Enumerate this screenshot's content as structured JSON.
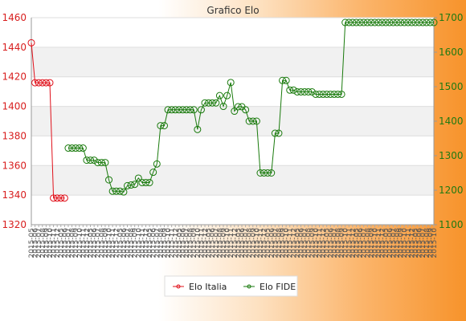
{
  "chart_data": {
    "type": "line",
    "title": "Grafico Elo",
    "grid": true,
    "legend_position": "bottom",
    "y_left": {
      "min": 1320,
      "max": 1460,
      "ticks": [
        1320,
        1340,
        1360,
        1380,
        1400,
        1420,
        1440,
        1460
      ],
      "color": "#d81e1e"
    },
    "y_right": {
      "min": 1100,
      "max": 1700,
      "ticks": [
        1100,
        1200,
        1300,
        1400,
        1500,
        1600,
        1700
      ],
      "color": "#1f7a12"
    },
    "x_tick_labels": [
      "2015-05",
      "2015-06",
      "2015-07",
      "2015-08",
      "2015-09",
      "2015-10",
      "2015-11",
      "2015-12"
    ],
    "series": [
      {
        "name": "Elo Italia",
        "axis": "left",
        "color": "#e0101a",
        "values": [
          1443,
          1416,
          1416,
          1416,
          1416,
          1416,
          1338,
          1338,
          1338,
          1338
        ]
      },
      {
        "name": "Elo FIDE",
        "axis": "right",
        "color": "#197a0c",
        "values": [
          null,
          null,
          null,
          null,
          null,
          null,
          null,
          null,
          null,
          null,
          1322,
          1322,
          1322,
          1322,
          1322,
          1287,
          1287,
          1287,
          1280,
          1280,
          1280,
          1230,
          1197,
          1197,
          1197,
          1195,
          1213,
          1215,
          1217,
          1235,
          1222,
          1222,
          1222,
          1252,
          1276,
          1387,
          1387,
          1433,
          1433,
          1433,
          1433,
          1433,
          1433,
          1433,
          1433,
          1376,
          1433,
          1453,
          1453,
          1453,
          1453,
          1474,
          1443,
          1474,
          1512,
          1429,
          1442,
          1442,
          1433,
          1400,
          1400,
          1400,
          1250,
          1250,
          1250,
          1250,
          1365,
          1365,
          1518,
          1518,
          1490,
          1490,
          1485,
          1485,
          1485,
          1485,
          1485,
          1478,
          1478,
          1478,
          1478,
          1478,
          1478,
          1478,
          1478,
          1686,
          1686,
          1686,
          1686,
          1686,
          1686,
          1686,
          1686,
          1686,
          1686,
          1686,
          1686,
          1686,
          1686,
          1686,
          1686,
          1686,
          1686,
          1686,
          1686,
          1686,
          1686,
          1686,
          1686,
          1686
        ]
      }
    ]
  }
}
